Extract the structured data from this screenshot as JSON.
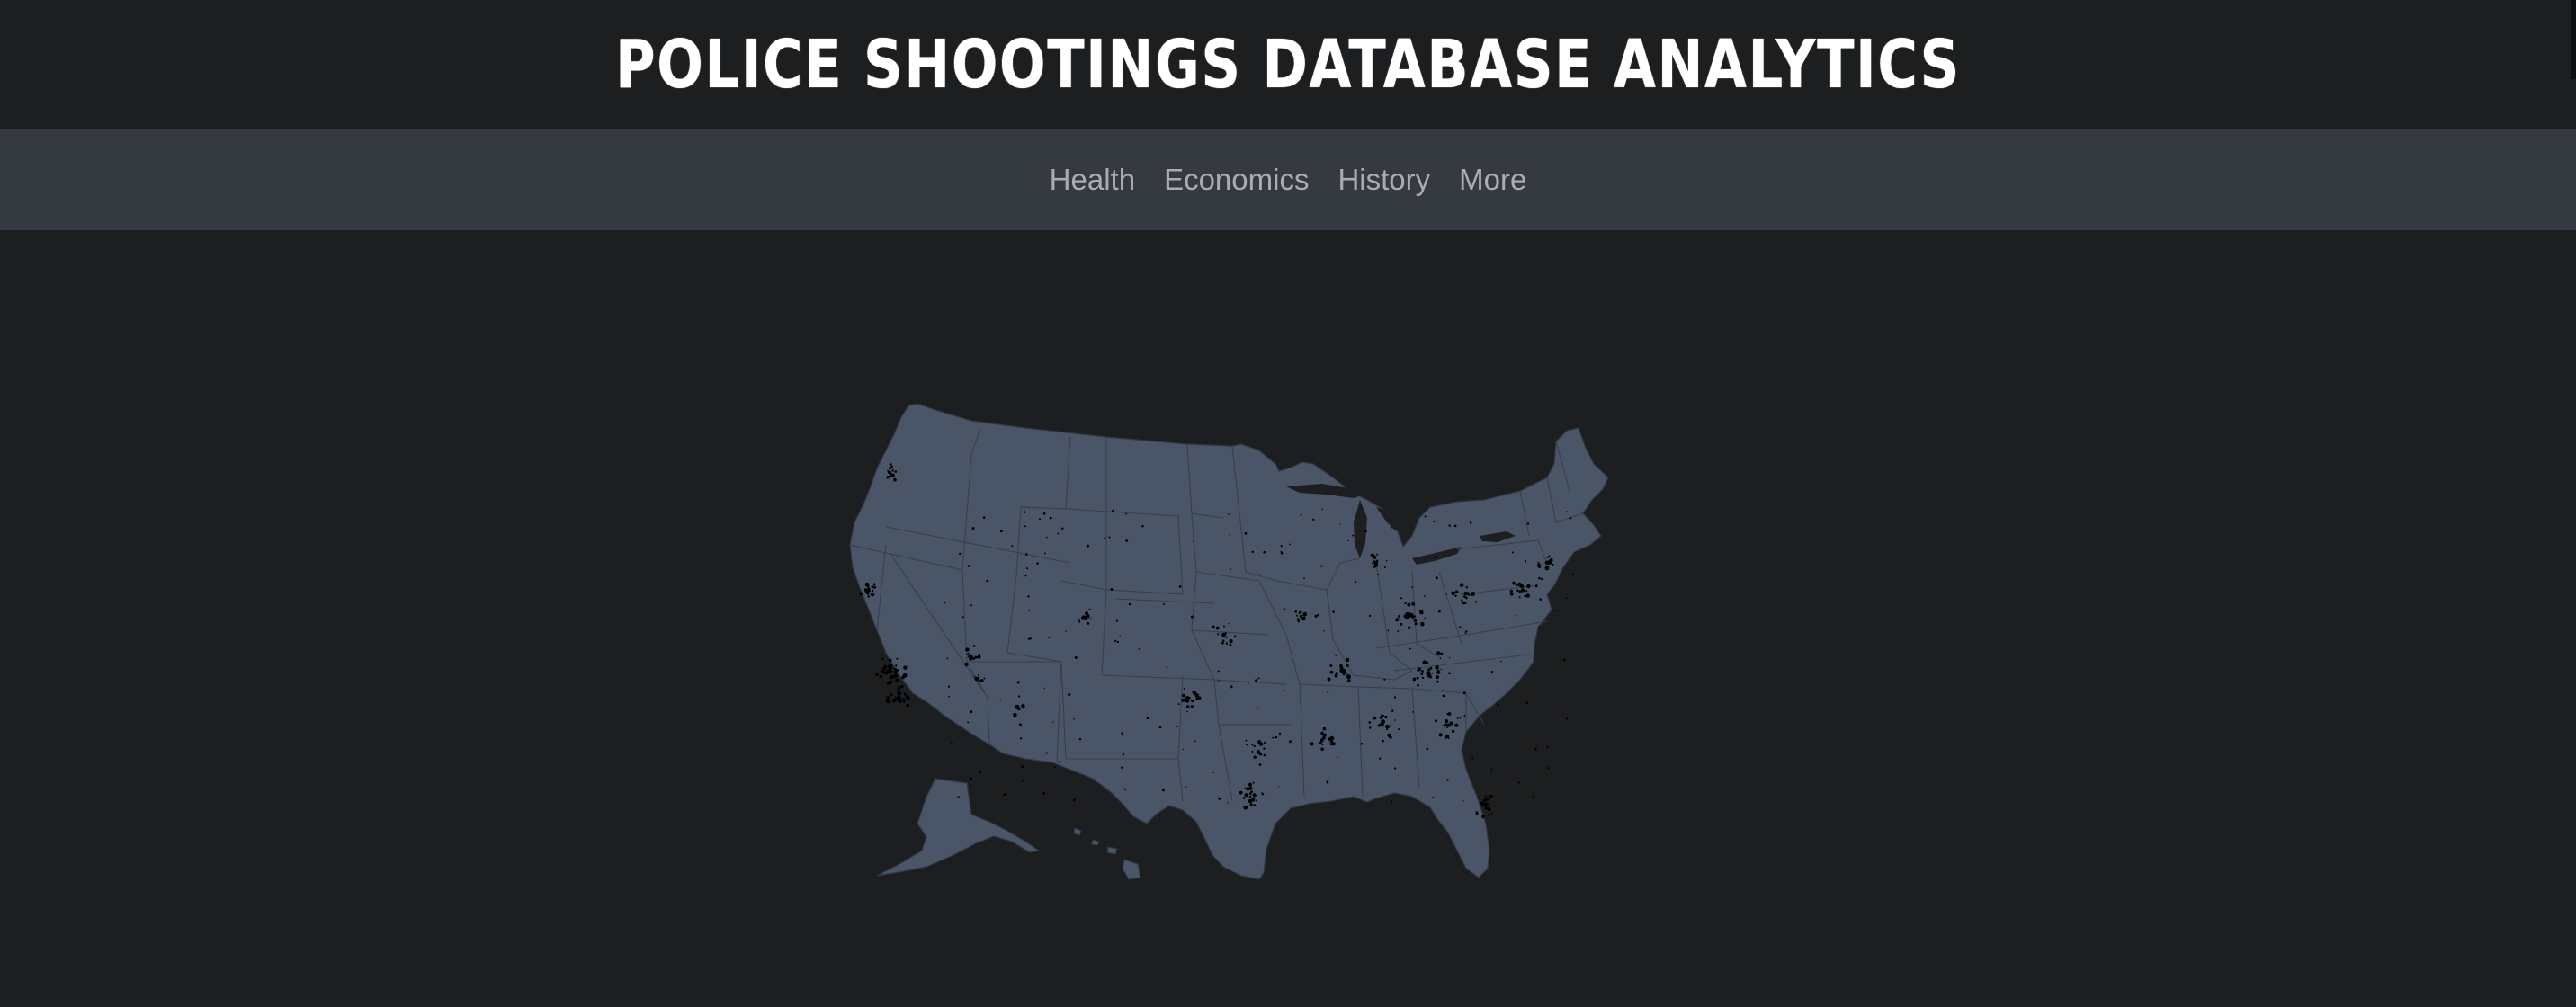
{
  "header": {
    "title": "POLICE SHOOTINGS DATABASE ANALYTICS"
  },
  "nav": {
    "items": [
      {
        "label": "Health"
      },
      {
        "label": "Economics"
      },
      {
        "label": "History"
      },
      {
        "label": "More"
      }
    ]
  },
  "map": {
    "region": "United States",
    "fill_color": "#4a5668",
    "marker_color": "#000000",
    "background_color": "#1c1e20"
  }
}
